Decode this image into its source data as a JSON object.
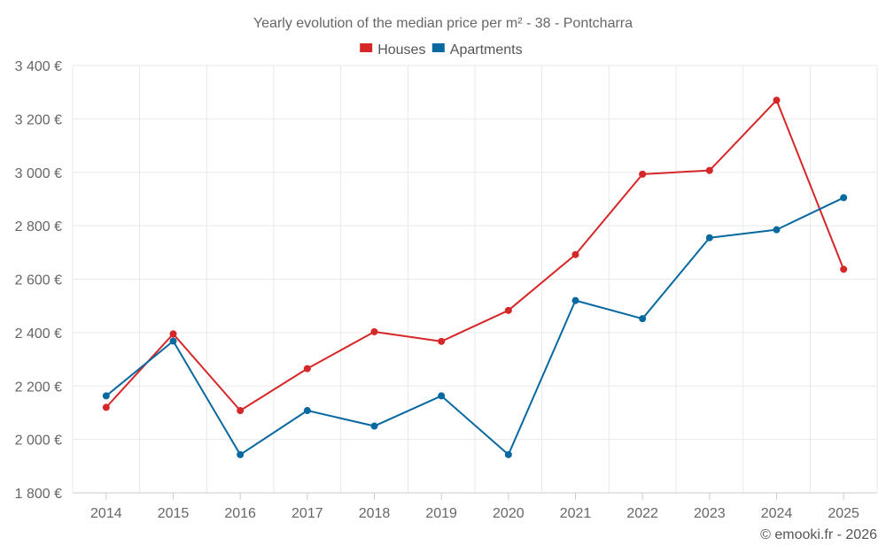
{
  "chart_data": {
    "type": "line",
    "title": "Yearly evolution of the median price per m² - 38 - Pontcharra",
    "categories": [
      "2014",
      "2015",
      "2016",
      "2017",
      "2018",
      "2019",
      "2020",
      "2021",
      "2022",
      "2023",
      "2024",
      "2025"
    ],
    "series": [
      {
        "name": "Houses",
        "color": "#d62728",
        "values": [
          2120,
          2395,
          2108,
          2265,
          2403,
          2367,
          2483,
          2692,
          2993,
          3007,
          3270,
          2637
        ]
      },
      {
        "name": "Apartments",
        "color": "#0868a0",
        "values": [
          2163,
          2368,
          1943,
          2108,
          2050,
          2163,
          1943,
          2520,
          2452,
          2755,
          2785,
          2905
        ]
      }
    ],
    "ylim": [
      1800,
      3400
    ],
    "yticks": [
      1800,
      2000,
      2200,
      2400,
      2600,
      2800,
      3000,
      3200,
      3400
    ],
    "ytick_labels": [
      "1 800 €",
      "2 000 €",
      "2 200 €",
      "2 400 €",
      "2 600 €",
      "2 800 €",
      "3 000 €",
      "3 200 €",
      "3 400 €"
    ],
    "xlabel": "",
    "ylabel": "",
    "grid": true,
    "legend_position": "top-center"
  },
  "credit": "© emooki.fr - 2026"
}
